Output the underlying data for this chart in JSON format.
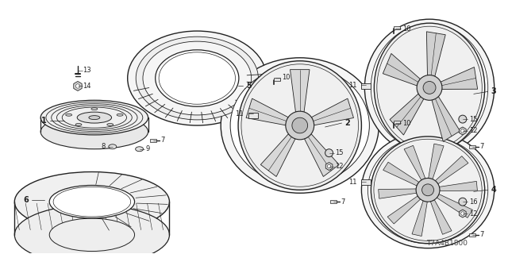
{
  "bg_color": "#ffffff",
  "text_color": "#333333",
  "figsize": [
    6.4,
    3.2
  ],
  "dpi": 100,
  "diagram_code": "T7A4B1800",
  "dark": "#222222",
  "label_fontsize": 6.0
}
